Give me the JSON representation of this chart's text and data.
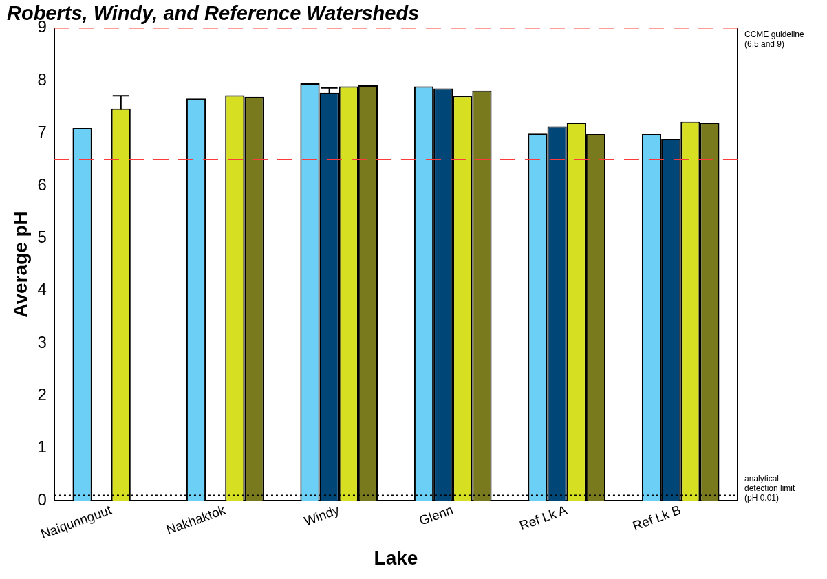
{
  "chart_data": {
    "type": "bar",
    "title": "Roberts, Windy, and Reference Watersheds",
    "xlabel": "Lake",
    "ylabel": "Average pH",
    "categories": [
      "Naiqunnguut",
      "Nakhaktok",
      "Windy",
      "Glenn",
      "Ref Lk A",
      "Ref Lk B"
    ],
    "series": [
      {
        "color": "#6ccff6",
        "values": [
          7.1,
          7.66,
          7.95,
          7.89,
          6.99,
          6.98
        ]
      },
      {
        "color": "#004677",
        "values": [
          null,
          null,
          7.77,
          7.85,
          7.13,
          6.89
        ],
        "errors": [
          null,
          null,
          0.09,
          null,
          null,
          null
        ]
      },
      {
        "color": "#d6df21",
        "values": [
          7.47,
          7.72,
          7.89,
          7.71,
          7.19,
          7.22
        ],
        "errors": [
          0.24,
          null,
          null,
          null,
          null,
          null
        ]
      },
      {
        "color": "#79791e",
        "values": [
          null,
          7.69,
          7.91,
          7.81,
          6.98,
          7.19
        ]
      }
    ],
    "ylim": [
      0,
      9
    ],
    "yticks": [
      0,
      1,
      2,
      3,
      4,
      5,
      6,
      7,
      8,
      9
    ],
    "grid": false,
    "legend": false,
    "ref_lines": [
      {
        "axis": "y",
        "value": 9,
        "label": "CCME guideline (6.5 and 9)",
        "color": "#ff3b3b",
        "line_style": "dashed"
      },
      {
        "axis": "y",
        "value": 6.5,
        "label": null,
        "color": "#ff3b3b",
        "line_style": "dashed"
      },
      {
        "axis": "y",
        "value": 0.1,
        "label": "analytical detection limit (pH 0.01)",
        "color": "#000000",
        "line_style": "dotted"
      }
    ]
  }
}
